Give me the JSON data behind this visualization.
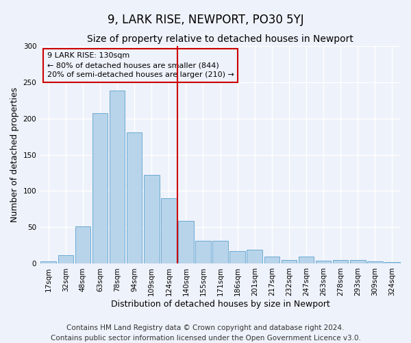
{
  "title": "9, LARK RISE, NEWPORT, PO30 5YJ",
  "subtitle": "Size of property relative to detached houses in Newport",
  "xlabel": "Distribution of detached houses by size in Newport",
  "ylabel": "Number of detached properties",
  "footer_line1": "Contains HM Land Registry data © Crown copyright and database right 2024.",
  "footer_line2": "Contains public sector information licensed under the Open Government Licence v3.0.",
  "categories": [
    "17sqm",
    "32sqm",
    "48sqm",
    "63sqm",
    "78sqm",
    "94sqm",
    "109sqm",
    "124sqm",
    "140sqm",
    "155sqm",
    "171sqm",
    "186sqm",
    "201sqm",
    "217sqm",
    "232sqm",
    "247sqm",
    "263sqm",
    "278sqm",
    "293sqm",
    "309sqm",
    "324sqm"
  ],
  "values": [
    3,
    12,
    51,
    207,
    238,
    181,
    122,
    90,
    59,
    32,
    32,
    17,
    19,
    10,
    5,
    10,
    4,
    5,
    5,
    3,
    2
  ],
  "bar_color": "#b8d4ea",
  "bar_edge_color": "#6aaad4",
  "vline_x_index": 7,
  "vline_color": "#cc0000",
  "annotation_line1": "9 LARK RISE: 130sqm",
  "annotation_line2": "← 80% of detached houses are smaller (844)",
  "annotation_line3": "20% of semi-detached houses are larger (210) →",
  "annotation_box_color": "#cc0000",
  "ylim": [
    0,
    300
  ],
  "background_color": "#eef2fa",
  "grid_color": "#ffffff",
  "title_fontsize": 12,
  "subtitle_fontsize": 10,
  "xlabel_fontsize": 9,
  "ylabel_fontsize": 9,
  "tick_fontsize": 7.5,
  "footer_fontsize": 7.5,
  "annot_fontsize": 8
}
